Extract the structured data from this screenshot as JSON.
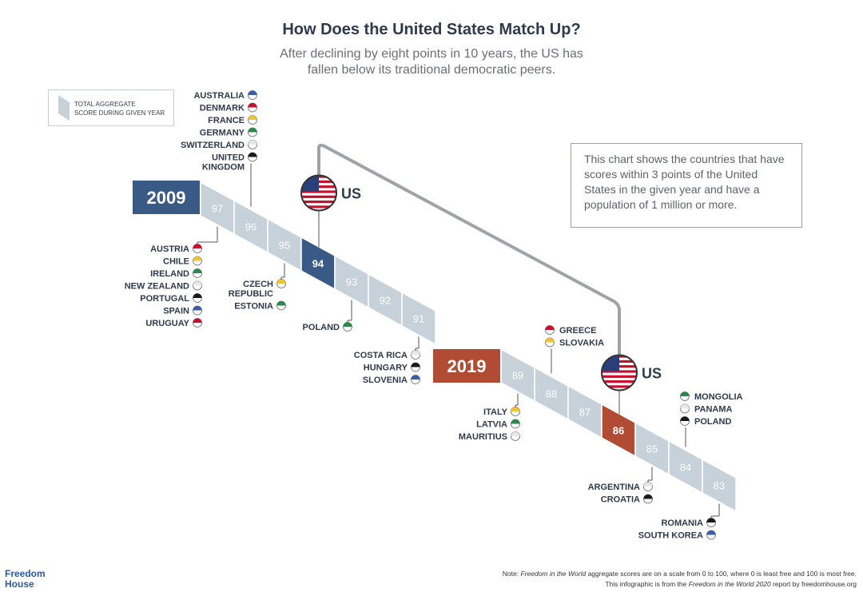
{
  "header": {
    "title": "How Does the United States Match Up?",
    "subtitle_line1": "After declining by eight points in 10 years, the US has",
    "subtitle_line2": "fallen below its traditional democratic peers."
  },
  "legend": {
    "line1": "TOTAL AGGREGATE",
    "line2": "SCORE DURING GIVEN YEAR"
  },
  "info_box": {
    "text": "This chart shows the countries that have scores within 3 points of the United States in the given year and have a population of 1 million or more."
  },
  "footer": {
    "logo_line1": "Freedom",
    "logo_line2": "House",
    "note_prefix": "Note: ",
    "note_italic": "Freedom in the World",
    "note_rest": " aggregate scores are on a scale from 0 to 100, where 0 is least free and 100 is most free.",
    "source_prefix": "This infographic is from the ",
    "source_italic": "Freedom in the World 2020",
    "source_rest": " report by freedomhouse.org"
  },
  "colors": {
    "year_2009": "#3a5a86",
    "year_2019": "#b24b34",
    "ribbon": "#c7d1d9",
    "connector": "#9ea3a8",
    "text_dark": "#2f3a4c"
  },
  "chart_data": {
    "type": "table",
    "groups": [
      {
        "year": "2009",
        "us_label": "US",
        "us_score": 94,
        "scores": [
          97,
          96,
          95,
          94,
          93,
          92,
          91
        ],
        "countries": [
          {
            "score": 96,
            "names": [
              "AUSTRALIA",
              "DENMARK",
              "FRANCE",
              "GERMANY",
              "SWITZERLAND",
              "UNITED KINGDOM"
            ]
          },
          {
            "score": 97,
            "names": [
              "AUSTRIA",
              "CHILE",
              "IRELAND",
              "NEW ZEALAND",
              "PORTUGAL",
              "SPAIN",
              "URUGUAY"
            ]
          },
          {
            "score": 95,
            "names": [
              "CZECH REPUBLIC",
              "ESTONIA"
            ]
          },
          {
            "score": 93,
            "names": [
              "POLAND"
            ]
          },
          {
            "score": 91,
            "names": [
              "COSTA RICA",
              "HUNGARY",
              "SLOVENIA"
            ]
          }
        ]
      },
      {
        "year": "2019",
        "us_label": "US",
        "us_score": 86,
        "scores": [
          89,
          88,
          87,
          86,
          85,
          84,
          83
        ],
        "countries": [
          {
            "score": 88,
            "names": [
              "GREECE",
              "SLOVAKIA"
            ]
          },
          {
            "score": 89,
            "names": [
              "ITALY",
              "LATVIA",
              "MAURITIUS"
            ]
          },
          {
            "score": 84,
            "names": [
              "MONGOLIA",
              "PANAMA",
              "POLAND"
            ]
          },
          {
            "score": 85,
            "names": [
              "ARGENTINA",
              "CROATIA"
            ]
          },
          {
            "score": 83,
            "names": [
              "ROMANIA",
              "SOUTH KOREA"
            ]
          }
        ]
      }
    ]
  }
}
